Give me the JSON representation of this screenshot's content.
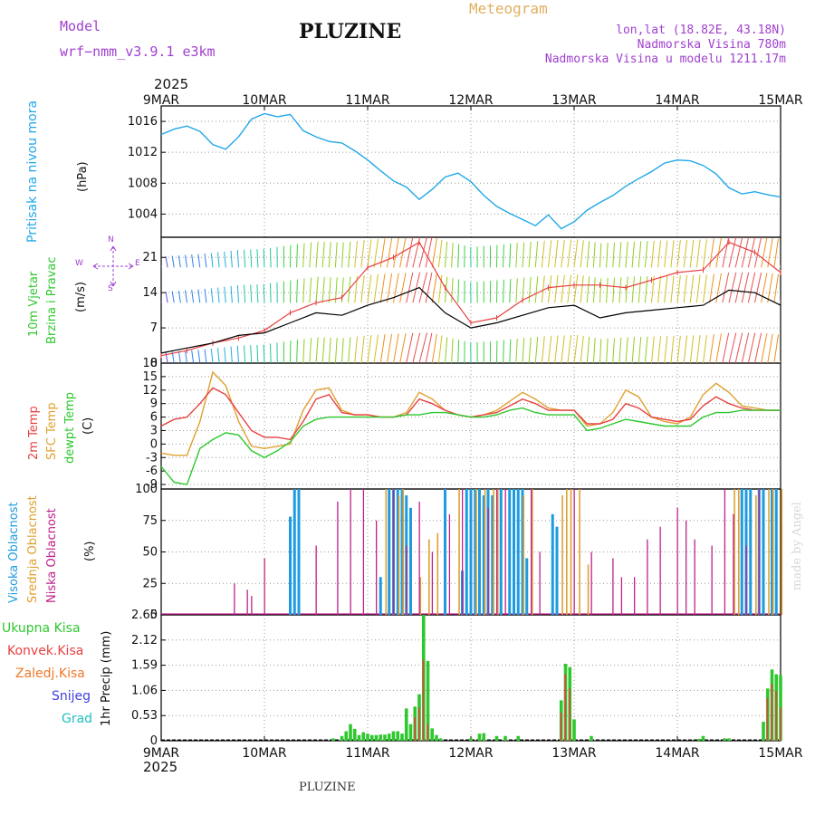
{
  "header": {
    "model_label": "Model",
    "model_name": "wrf−nmm_v3.9.1  e3km",
    "title": "PLUZINE",
    "meteogram": "Meteogram",
    "lonlat": "lon,lat (18.82E, 43.18N)",
    "altitude": "Nadmorska Visina 780m",
    "model_altitude": "Nadmorska Visina u modelu 1211.17m",
    "year_top": "2025",
    "year_bottom": "2025",
    "footer": "PLUZINE",
    "credit": "made by Angel"
  },
  "colors": {
    "pressure": "#22a8e8",
    "wind_speed": "#000000",
    "gust": "#e84040",
    "t2m": "#e84040",
    "tsfc": "#e0a030",
    "dewpt": "#2ec82e",
    "high_cloud": "#1e9be0",
    "mid_cloud": "#e0a030",
    "low_cloud": "#c0208a",
    "total_rain": "#2ec82e",
    "conv_rain": "#e84040",
    "freezing_rain": "#f07828",
    "snow": "#4040e0",
    "hail": "#20c0c0",
    "label_purple": "#a040d0"
  },
  "labels": {
    "pressure": {
      "line1": "Pritisak na nivou mora",
      "unit": "(hPa)"
    },
    "wind": {
      "line1": "10m Vjetar",
      "line2": "Brzina i Pravac",
      "unit": "(m/s)",
      "compass_w": "W",
      "compass_e": "E",
      "compass_n": "N",
      "compass_s": "S"
    },
    "temp": {
      "t2m": "2m Temp",
      "tsfc": "SFC Temp",
      "dewpt": "dewpt Temp",
      "unit": "(C)"
    },
    "cloud": {
      "high": "Visoka Oblacnost",
      "mid": "Srednja Oblacnost",
      "low": "Niska Oblacnost",
      "unit": "(%)"
    },
    "precip": {
      "total": "Ukupna Kisa",
      "conv": "Konvek.Kisa",
      "frz": "Zaledj.Kisa",
      "snow": "Snijeg",
      "hail": "Grad",
      "unit": "1hr Precip (mm)"
    }
  },
  "chart_data": {
    "type": "meteogram",
    "x_dates": [
      "9MAR",
      "10MAR",
      "11MAR",
      "12MAR",
      "13MAR",
      "14MAR",
      "15MAR"
    ],
    "x_hours_range": [
      0,
      144
    ],
    "panels": {
      "pressure": {
        "type": "line",
        "ylabel": "hPa",
        "ylim": [
          1001,
          1018
        ],
        "yticks": [
          1004,
          1008,
          1012,
          1016
        ],
        "x": [
          0,
          3,
          6,
          9,
          12,
          15,
          18,
          21,
          24,
          27,
          30,
          33,
          36,
          39,
          42,
          45,
          48,
          51,
          54,
          57,
          60,
          63,
          66,
          69,
          72,
          75,
          78,
          81,
          84,
          87,
          90,
          93,
          96,
          99,
          102,
          105,
          108,
          111,
          114,
          117,
          120,
          123,
          126,
          129,
          132,
          135,
          138,
          141,
          144
        ],
        "y": [
          1014.3,
          1015.0,
          1015.4,
          1014.7,
          1013.0,
          1012.4,
          1014.0,
          1016.3,
          1017.0,
          1016.6,
          1016.9,
          1014.8,
          1014.0,
          1013.4,
          1013.2,
          1012.2,
          1011.0,
          1009.6,
          1008.3,
          1007.5,
          1005.9,
          1007.2,
          1008.8,
          1009.3,
          1008.2,
          1006.4,
          1005.0,
          1004.1,
          1003.3,
          1002.5,
          1003.9,
          1002.1,
          1003.0,
          1004.5,
          1005.5,
          1006.4,
          1007.6,
          1008.6,
          1009.5,
          1010.6,
          1011.0,
          1010.9,
          1010.3,
          1009.2,
          1007.4,
          1006.6,
          1006.9,
          1006.5,
          1006.2
        ]
      },
      "wind": {
        "type": "line+barbs",
        "ylabel": "m/s",
        "ylim": [
          0,
          25
        ],
        "yticks": [
          0,
          7,
          14,
          21
        ],
        "x": [
          0,
          6,
          12,
          18,
          24,
          30,
          36,
          42,
          48,
          54,
          60,
          66,
          72,
          78,
          84,
          90,
          96,
          102,
          108,
          114,
          120,
          126,
          132,
          138,
          144
        ],
        "speed": [
          2.0,
          3.0,
          4.0,
          5.5,
          6.0,
          8.0,
          10.0,
          9.5,
          11.5,
          13.0,
          15.0,
          10.0,
          7.0,
          8.0,
          9.5,
          11.0,
          11.5,
          9.0,
          10.0,
          10.5,
          11.0,
          11.5,
          14.5,
          14.0,
          11.5
        ],
        "gust": [
          1.5,
          2.5,
          4.0,
          5.0,
          6.5,
          10.0,
          12.0,
          13.0,
          19.0,
          21.0,
          24.0,
          15.0,
          8.0,
          9.0,
          12.5,
          15.0,
          15.5,
          15.5,
          15.0,
          16.5,
          18.0,
          18.5,
          24.0,
          22.0,
          18.0
        ]
      },
      "temperature": {
        "type": "line",
        "ylabel": "C",
        "ylim": [
          -10,
          18
        ],
        "yticks": [
          -9,
          -6,
          -3,
          0,
          3,
          6,
          9,
          12,
          15,
          18
        ],
        "x": [
          0,
          3,
          6,
          9,
          12,
          15,
          18,
          21,
          24,
          27,
          30,
          33,
          36,
          39,
          42,
          45,
          48,
          51,
          54,
          57,
          60,
          63,
          66,
          69,
          72,
          75,
          78,
          81,
          84,
          87,
          90,
          93,
          96,
          99,
          102,
          105,
          108,
          111,
          114,
          117,
          120,
          123,
          126,
          129,
          132,
          135,
          138,
          141,
          144
        ],
        "t2m": [
          4.0,
          5.5,
          6.0,
          9.0,
          12.5,
          11.0,
          7.0,
          3.0,
          1.5,
          1.5,
          1.0,
          5.0,
          10.0,
          11.0,
          7.0,
          6.5,
          6.5,
          6.0,
          6.0,
          6.5,
          10.0,
          9.0,
          7.5,
          6.5,
          6.0,
          6.5,
          7.0,
          8.5,
          10.0,
          9.0,
          7.5,
          7.5,
          7.5,
          4.5,
          4.5,
          5.5,
          9.0,
          8.0,
          6.0,
          5.5,
          5.0,
          5.5,
          8.5,
          10.5,
          9.0,
          8.0,
          7.5,
          7.5,
          7.5
        ],
        "tsfc": [
          -2.0,
          -2.5,
          -2.5,
          5.0,
          16.0,
          13.0,
          5.0,
          -0.5,
          -1.0,
          -0.5,
          0.0,
          7.5,
          12.0,
          12.5,
          7.5,
          6.5,
          6.5,
          6.0,
          6.0,
          7.0,
          11.5,
          10.0,
          7.5,
          6.5,
          6.0,
          6.5,
          7.5,
          9.5,
          11.5,
          10.0,
          8.0,
          7.5,
          7.5,
          4.0,
          4.5,
          7.0,
          12.0,
          10.5,
          6.0,
          5.0,
          4.5,
          6.0,
          11.0,
          13.5,
          11.5,
          8.5,
          8.0,
          7.5,
          7.5
        ],
        "dewpt": [
          -5.0,
          -8.5,
          -9.0,
          -1.0,
          1.0,
          2.5,
          2.0,
          -1.5,
          -3.0,
          -1.5,
          0.5,
          4.0,
          5.5,
          6.0,
          6.0,
          6.0,
          6.0,
          6.0,
          6.0,
          6.5,
          6.5,
          7.0,
          7.0,
          6.5,
          6.0,
          6.0,
          6.5,
          7.5,
          8.0,
          7.0,
          6.5,
          6.5,
          6.5,
          3.0,
          3.5,
          4.5,
          5.5,
          5.0,
          4.5,
          4.0,
          4.0,
          4.0,
          6.0,
          7.0,
          7.0,
          7.5,
          7.5,
          7.5,
          7.5
        ]
      },
      "clouds": {
        "type": "bar",
        "ylabel": "%",
        "ylim": [
          0,
          100
        ],
        "yticks": [
          0,
          25,
          50,
          75,
          100
        ],
        "high": [
          [
            30,
            78
          ],
          [
            31,
            100
          ],
          [
            32,
            100
          ],
          [
            51,
            30
          ],
          [
            53,
            100
          ],
          [
            54,
            100
          ],
          [
            55,
            100
          ],
          [
            56,
            100
          ],
          [
            57,
            95
          ],
          [
            58,
            85
          ],
          [
            66,
            100
          ],
          [
            70,
            35
          ],
          [
            71,
            100
          ],
          [
            72,
            100
          ],
          [
            73,
            100
          ],
          [
            74,
            100
          ],
          [
            75,
            95
          ],
          [
            76,
            100
          ],
          [
            77,
            95
          ],
          [
            79,
            100
          ],
          [
            81,
            100
          ],
          [
            82,
            100
          ],
          [
            83,
            100
          ],
          [
            84,
            100
          ],
          [
            85,
            45
          ],
          [
            91,
            80
          ],
          [
            92,
            70
          ],
          [
            135,
            100
          ],
          [
            136,
            100
          ],
          [
            137,
            100
          ],
          [
            139,
            100
          ],
          [
            140,
            100
          ],
          [
            142,
            100
          ],
          [
            143,
            100
          ]
        ],
        "mid": [
          [
            52,
            100
          ],
          [
            55,
            95
          ],
          [
            56,
            100
          ],
          [
            60,
            30
          ],
          [
            62,
            60
          ],
          [
            64,
            65
          ],
          [
            69,
            100
          ],
          [
            73,
            100
          ],
          [
            75,
            100
          ],
          [
            77,
            100
          ],
          [
            78,
            100
          ],
          [
            84,
            95
          ],
          [
            86,
            100
          ],
          [
            93,
            95
          ],
          [
            94,
            100
          ],
          [
            95,
            100
          ],
          [
            97,
            100
          ],
          [
            99,
            40
          ],
          [
            133,
            100
          ],
          [
            134,
            100
          ],
          [
            138,
            95
          ],
          [
            141,
            100
          ],
          [
            142,
            100
          ],
          [
            144,
            100
          ]
        ],
        "low": [
          [
            17,
            25
          ],
          [
            20,
            20
          ],
          [
            21,
            15
          ],
          [
            24,
            45
          ],
          [
            36,
            55
          ],
          [
            41,
            90
          ],
          [
            44,
            100
          ],
          [
            47,
            100
          ],
          [
            50,
            75
          ],
          [
            54,
            100
          ],
          [
            57,
            55
          ],
          [
            60,
            90
          ],
          [
            63,
            50
          ],
          [
            67,
            80
          ],
          [
            70,
            100
          ],
          [
            76,
            85
          ],
          [
            78,
            100
          ],
          [
            80,
            100
          ],
          [
            86,
            100
          ],
          [
            88,
            50
          ],
          [
            96,
            100
          ],
          [
            100,
            50
          ],
          [
            105,
            45
          ],
          [
            107,
            30
          ],
          [
            110,
            30
          ],
          [
            113,
            60
          ],
          [
            116,
            70
          ],
          [
            120,
            85
          ],
          [
            122,
            75
          ],
          [
            124,
            60
          ],
          [
            128,
            55
          ],
          [
            131,
            100
          ],
          [
            133,
            80
          ],
          [
            136,
            55
          ],
          [
            139,
            100
          ]
        ]
      },
      "precip": {
        "type": "bar",
        "ylabel": "1hr Precip (mm)",
        "ylim": [
          0,
          2.65
        ],
        "yticks": [
          0,
          0.53,
          1.06,
          1.59,
          2.12,
          2.65
        ],
        "total": [
          [
            40,
            0.05
          ],
          [
            42,
            0.1
          ],
          [
            43,
            0.2
          ],
          [
            44,
            0.35
          ],
          [
            45,
            0.25
          ],
          [
            46,
            0.12
          ],
          [
            47,
            0.18
          ],
          [
            48,
            0.15
          ],
          [
            49,
            0.12
          ],
          [
            50,
            0.12
          ],
          [
            51,
            0.13
          ],
          [
            52,
            0.13
          ],
          [
            53,
            0.15
          ],
          [
            54,
            0.2
          ],
          [
            55,
            0.2
          ],
          [
            56,
            0.15
          ],
          [
            57,
            0.68
          ],
          [
            58,
            0.35
          ],
          [
            59,
            0.72
          ],
          [
            60,
            0.98
          ],
          [
            61,
            2.65
          ],
          [
            62,
            1.68
          ],
          [
            63,
            0.26
          ],
          [
            64,
            0.12
          ],
          [
            65,
            0.05
          ],
          [
            72,
            0.05
          ],
          [
            74,
            0.15
          ],
          [
            75,
            0.16
          ],
          [
            78,
            0.1
          ],
          [
            80,
            0.1
          ],
          [
            83,
            0.1
          ],
          [
            93,
            0.85
          ],
          [
            94,
            1.62
          ],
          [
            95,
            1.55
          ],
          [
            96,
            0.45
          ],
          [
            100,
            0.1
          ],
          [
            125,
            0.04
          ],
          [
            126,
            0.1
          ],
          [
            131,
            0.05
          ],
          [
            132,
            0.05
          ],
          [
            140,
            0.4
          ],
          [
            141,
            1.1
          ],
          [
            142,
            1.5
          ],
          [
            143,
            1.4
          ],
          [
            144,
            1.38
          ]
        ],
        "conv": [
          [
            59,
            0.5
          ],
          [
            60,
            0.7
          ],
          [
            61,
            1.7
          ],
          [
            62,
            0.35
          ],
          [
            93,
            0.6
          ],
          [
            94,
            1.4
          ],
          [
            95,
            1.1
          ],
          [
            141,
            0.9
          ],
          [
            142,
            1.2
          ],
          [
            143,
            1.05
          ],
          [
            144,
            0.7
          ]
        ]
      }
    }
  }
}
